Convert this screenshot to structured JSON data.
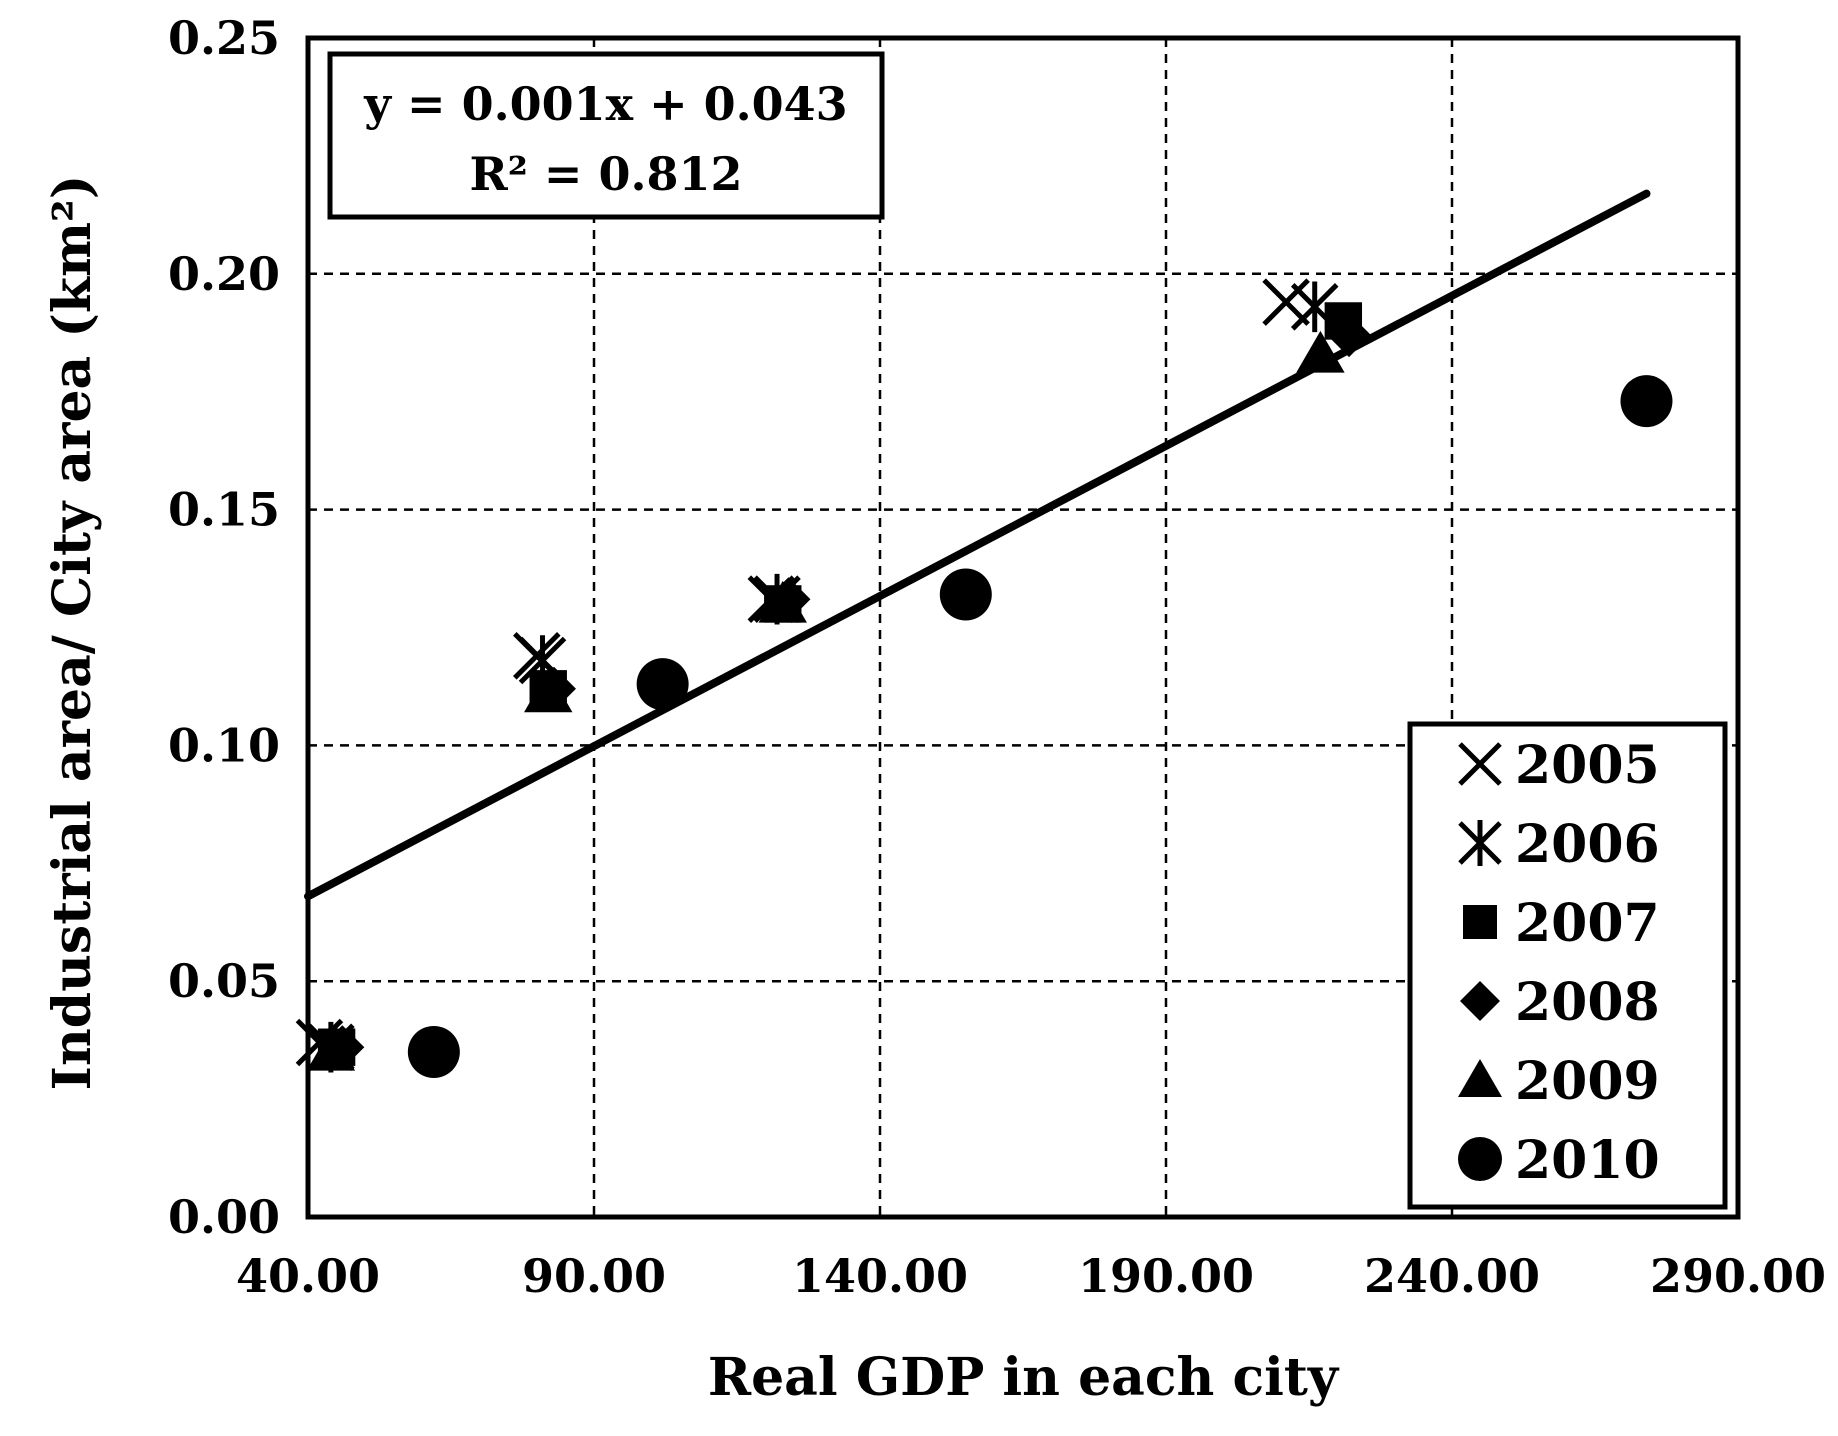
{
  "chart_data": {
    "type": "scatter",
    "title": "",
    "xlabel": "Real GDP in each city",
    "ylabel": "Industrial area/ City area (km²)",
    "xlim": [
      40,
      290
    ],
    "ylim": [
      0,
      0.25
    ],
    "x_ticks": [
      "40.00",
      "90.00",
      "140.00",
      "190.00",
      "240.00",
      "290.00"
    ],
    "y_ticks": [
      "0.00",
      "0.05",
      "0.10",
      "0.15",
      "0.20",
      "0.25"
    ],
    "x_tick_values": [
      40,
      90,
      140,
      190,
      240,
      290
    ],
    "y_tick_values": [
      0,
      0.05,
      0.1,
      0.15,
      0.2,
      0.25
    ],
    "grid": true,
    "legend_position": "bottom-right",
    "trendline": {
      "equation": "y = 0.001x + 0.043",
      "r_squared": "R² = 0.812",
      "x": [
        40,
        274
      ],
      "y": [
        0.068,
        0.217
      ]
    },
    "series": [
      {
        "name": "2005",
        "marker": "x",
        "x": [
          42,
          80,
          121,
          211
        ],
        "y": [
          0.037,
          0.119,
          0.131,
          0.194
        ]
      },
      {
        "name": "2006",
        "marker": "star",
        "x": [
          44,
          81,
          122,
          216
        ],
        "y": [
          0.036,
          0.118,
          0.131,
          0.193
        ]
      },
      {
        "name": "2007",
        "marker": "square",
        "x": [
          45,
          82,
          123,
          221
        ],
        "y": [
          0.036,
          0.112,
          0.13,
          0.19
        ]
      },
      {
        "name": "2008",
        "marker": "diamond",
        "x": [
          46,
          83,
          124,
          222
        ],
        "y": [
          0.036,
          0.112,
          0.131,
          0.187
        ]
      },
      {
        "name": "2009",
        "marker": "triangle",
        "x": [
          44,
          82,
          123,
          217
        ],
        "y": [
          0.035,
          0.111,
          0.13,
          0.183
        ]
      },
      {
        "name": "2010",
        "marker": "circle",
        "x": [
          62,
          102,
          155,
          274
        ],
        "y": [
          0.035,
          0.113,
          0.132,
          0.173
        ]
      }
    ]
  }
}
